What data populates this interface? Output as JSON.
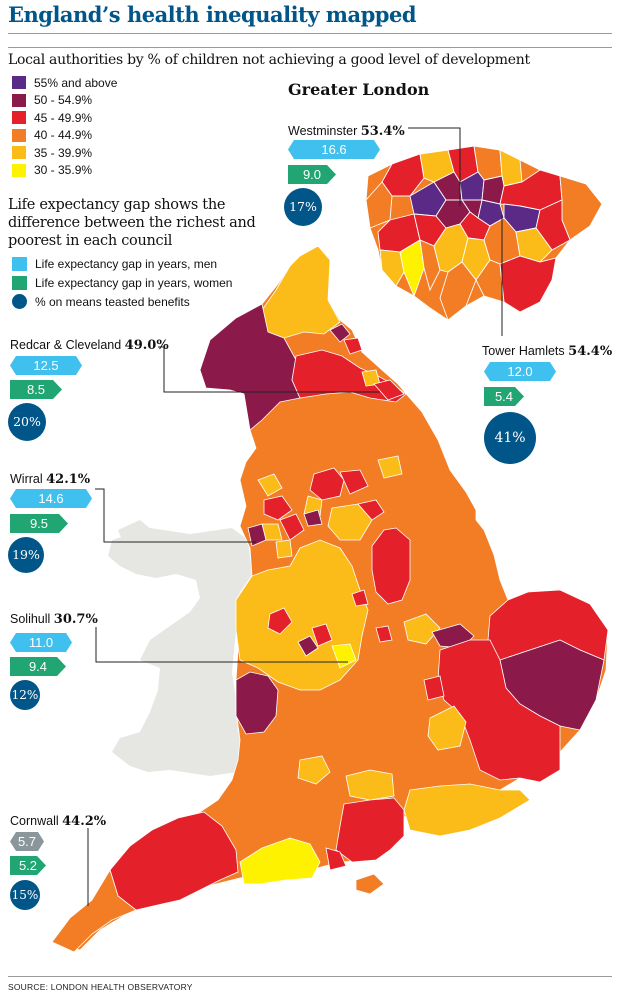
{
  "title": "England’s health inequality mapped",
  "subtitle": "Local authorities by % of children not achieving a good level of development",
  "legend_dev": [
    {
      "label": "55% and above",
      "color": "#5b2a86"
    },
    {
      "label": "50 - 54.9%",
      "color": "#8b1a4a"
    },
    {
      "label": "45 - 49.9%",
      "color": "#e4202a"
    },
    {
      "label": "40 - 44.9%",
      "color": "#f27d24"
    },
    {
      "label": "35 - 39.9%",
      "color": "#fbbc1a"
    },
    {
      "label": "30 - 35.9%",
      "color": "#fff200"
    }
  ],
  "life_title": "Life expectancy gap shows the difference between the richest and poorest in each council",
  "legend_gap": [
    {
      "label": "Life expectancy gap in years, men",
      "color": "#3fc0ee"
    },
    {
      "label": "Life expectancy gap in years, women",
      "color": "#21a572"
    },
    {
      "label": "% on means teasted benefits",
      "color": "#005689"
    }
  ],
  "london_title": "Greater London",
  "callouts": {
    "westminster": {
      "name": "Westminster",
      "pct": "53.4%",
      "men": "16.6",
      "women": "9.0",
      "benefits": "17%"
    },
    "tower_hamlets": {
      "name": "Tower Hamlets",
      "pct": "54.4%",
      "men": "12.0",
      "women": "5.4",
      "benefits": "41%"
    },
    "redcar": {
      "name": "Redcar & Cleveland",
      "pct": "49.0%",
      "men": "12.5",
      "women": "8.5",
      "benefits": "20%"
    },
    "wirral": {
      "name": "Wirral",
      "pct": "42.1%",
      "men": "14.6",
      "women": "9.5",
      "benefits": "19%"
    },
    "solihull": {
      "name": "Solihull",
      "pct": "30.7%",
      "men": "11.0",
      "women": "9.4",
      "benefits": "12%"
    },
    "cornwall": {
      "name": "Cornwall",
      "pct": "44.2%",
      "men": "5.7",
      "women": "5.2",
      "benefits": "15%"
    }
  },
  "source": "SOURCE: LONDON HEALTH OBSERVATORY",
  "colors": {
    "accent": "#005689",
    "wales": "#e6e6e3",
    "border": "#ffffff"
  }
}
